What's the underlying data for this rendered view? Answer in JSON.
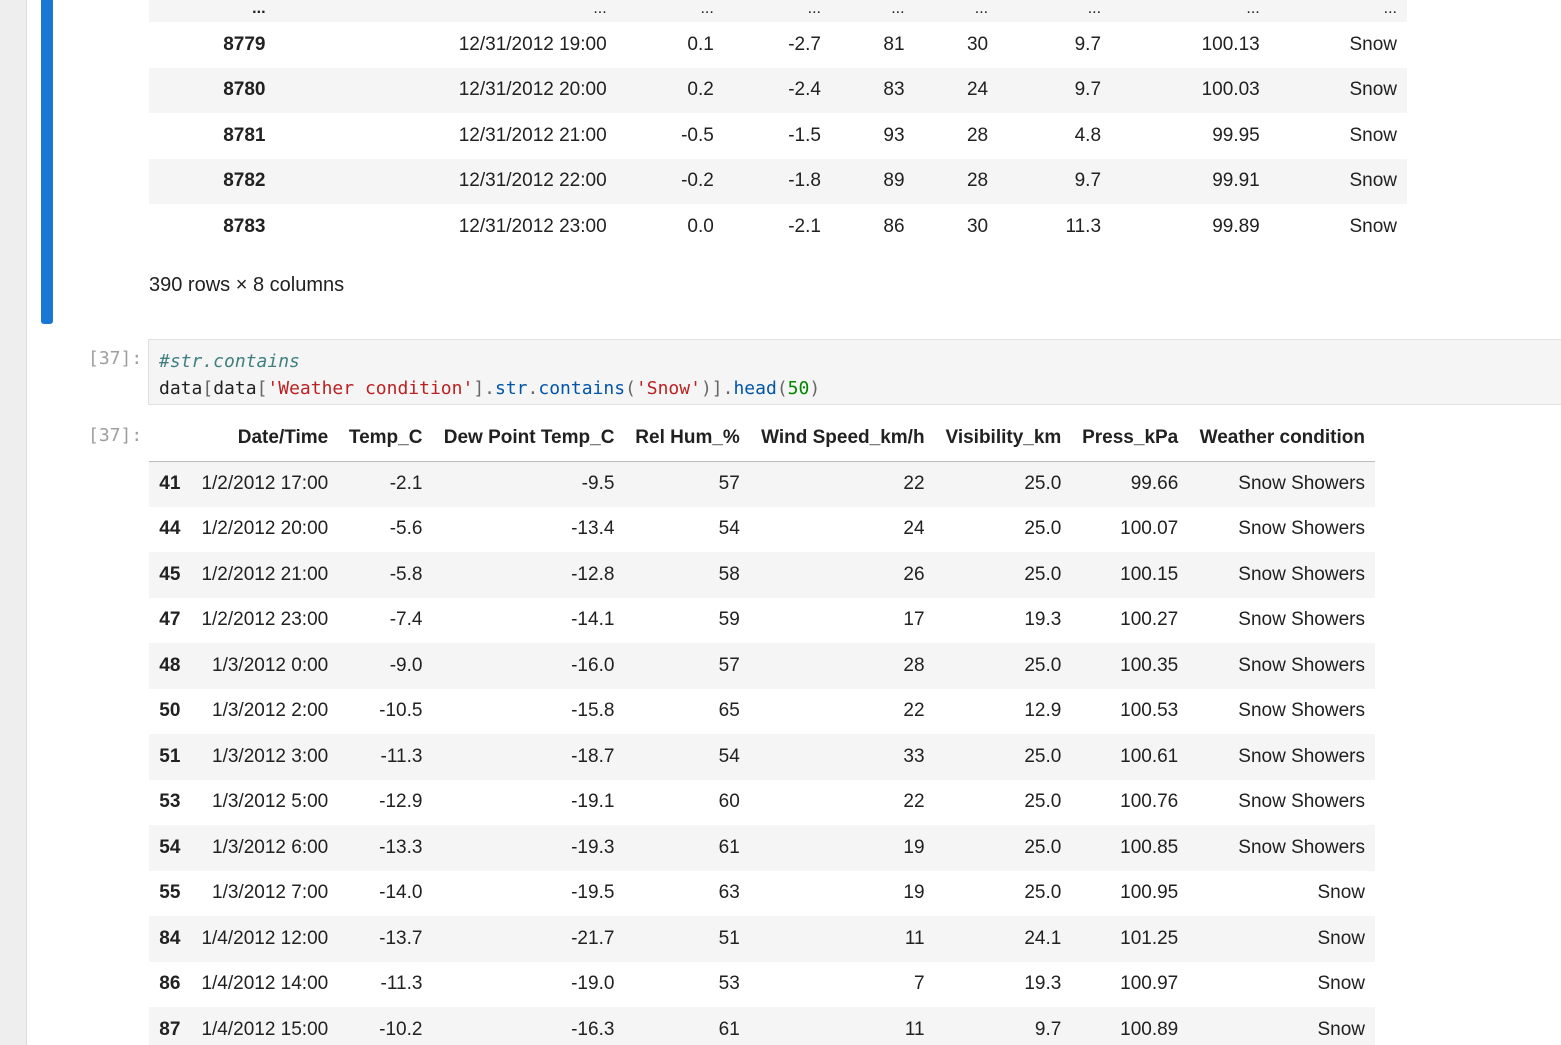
{
  "top_table": {
    "ellipsis_row": [
      "...",
      "...",
      "...",
      "...",
      "...",
      "...",
      "...",
      "...",
      "..."
    ],
    "rows": [
      {
        "idx": "8779",
        "dt": "12/31/2012 19:00",
        "temp": "0.1",
        "dew": "-2.7",
        "hum": "81",
        "wind": "30",
        "vis": "9.7",
        "press": "100.13",
        "cond": "Snow"
      },
      {
        "idx": "8780",
        "dt": "12/31/2012 20:00",
        "temp": "0.2",
        "dew": "-2.4",
        "hum": "83",
        "wind": "24",
        "vis": "9.7",
        "press": "100.03",
        "cond": "Snow"
      },
      {
        "idx": "8781",
        "dt": "12/31/2012 21:00",
        "temp": "-0.5",
        "dew": "-1.5",
        "hum": "93",
        "wind": "28",
        "vis": "4.8",
        "press": "99.95",
        "cond": "Snow"
      },
      {
        "idx": "8782",
        "dt": "12/31/2012 22:00",
        "temp": "-0.2",
        "dew": "-1.8",
        "hum": "89",
        "wind": "28",
        "vis": "9.7",
        "press": "99.91",
        "cond": "Snow"
      },
      {
        "idx": "8783",
        "dt": "12/31/2012 23:00",
        "temp": "0.0",
        "dew": "-2.1",
        "hum": "86",
        "wind": "30",
        "vis": "11.3",
        "press": "99.89",
        "cond": "Snow"
      }
    ],
    "summary": "390 rows × 8 columns"
  },
  "cell37": {
    "input_prompt": "[37]:",
    "output_prompt": "[37]:",
    "code_comment": "#str.contains",
    "code": {
      "p1": "data",
      "p2": "[",
      "p3": "data",
      "p4": "[",
      "p5": "'Weather condition'",
      "p6": "].",
      "p7": "str",
      "p8": ".",
      "p9": "contains",
      "p10": "(",
      "p11": "'Snow'",
      "p12": ")].",
      "p13": "head",
      "p14": "(",
      "p15": "50",
      "p16": ")"
    }
  },
  "bottom_table": {
    "columns": [
      "",
      "Date/Time",
      "Temp_C",
      "Dew Point Temp_C",
      "Rel Hum_%",
      "Wind Speed_km/h",
      "Visibility_km",
      "Press_kPa",
      "Weather condition"
    ],
    "rows": [
      {
        "idx": "41",
        "dt": "1/2/2012 17:00",
        "temp": "-2.1",
        "dew": "-9.5",
        "hum": "57",
        "wind": "22",
        "vis": "25.0",
        "press": "99.66",
        "cond": "Snow Showers"
      },
      {
        "idx": "44",
        "dt": "1/2/2012 20:00",
        "temp": "-5.6",
        "dew": "-13.4",
        "hum": "54",
        "wind": "24",
        "vis": "25.0",
        "press": "100.07",
        "cond": "Snow Showers"
      },
      {
        "idx": "45",
        "dt": "1/2/2012 21:00",
        "temp": "-5.8",
        "dew": "-12.8",
        "hum": "58",
        "wind": "26",
        "vis": "25.0",
        "press": "100.15",
        "cond": "Snow Showers"
      },
      {
        "idx": "47",
        "dt": "1/2/2012 23:00",
        "temp": "-7.4",
        "dew": "-14.1",
        "hum": "59",
        "wind": "17",
        "vis": "19.3",
        "press": "100.27",
        "cond": "Snow Showers"
      },
      {
        "idx": "48",
        "dt": "1/3/2012 0:00",
        "temp": "-9.0",
        "dew": "-16.0",
        "hum": "57",
        "wind": "28",
        "vis": "25.0",
        "press": "100.35",
        "cond": "Snow Showers"
      },
      {
        "idx": "50",
        "dt": "1/3/2012 2:00",
        "temp": "-10.5",
        "dew": "-15.8",
        "hum": "65",
        "wind": "22",
        "vis": "12.9",
        "press": "100.53",
        "cond": "Snow Showers"
      },
      {
        "idx": "51",
        "dt": "1/3/2012 3:00",
        "temp": "-11.3",
        "dew": "-18.7",
        "hum": "54",
        "wind": "33",
        "vis": "25.0",
        "press": "100.61",
        "cond": "Snow Showers"
      },
      {
        "idx": "53",
        "dt": "1/3/2012 5:00",
        "temp": "-12.9",
        "dew": "-19.1",
        "hum": "60",
        "wind": "22",
        "vis": "25.0",
        "press": "100.76",
        "cond": "Snow Showers"
      },
      {
        "idx": "54",
        "dt": "1/3/2012 6:00",
        "temp": "-13.3",
        "dew": "-19.3",
        "hum": "61",
        "wind": "19",
        "vis": "25.0",
        "press": "100.85",
        "cond": "Snow Showers"
      },
      {
        "idx": "55",
        "dt": "1/3/2012 7:00",
        "temp": "-14.0",
        "dew": "-19.5",
        "hum": "63",
        "wind": "19",
        "vis": "25.0",
        "press": "100.95",
        "cond": "Snow"
      },
      {
        "idx": "84",
        "dt": "1/4/2012 12:00",
        "temp": "-13.7",
        "dew": "-21.7",
        "hum": "51",
        "wind": "11",
        "vis": "24.1",
        "press": "101.25",
        "cond": "Snow"
      },
      {
        "idx": "86",
        "dt": "1/4/2012 14:00",
        "temp": "-11.3",
        "dew": "-19.0",
        "hum": "53",
        "wind": "7",
        "vis": "19.3",
        "press": "100.97",
        "cond": "Snow"
      },
      {
        "idx": "87",
        "dt": "1/4/2012 15:00",
        "temp": "-10.2",
        "dew": "-16.3",
        "hum": "61",
        "wind": "11",
        "vis": "9.7",
        "press": "100.89",
        "cond": "Snow"
      }
    ]
  },
  "colors": {
    "active_cell_bar": "#1976d2",
    "row_stripe": "#f5f5f5",
    "code_background": "#f5f5f5"
  }
}
